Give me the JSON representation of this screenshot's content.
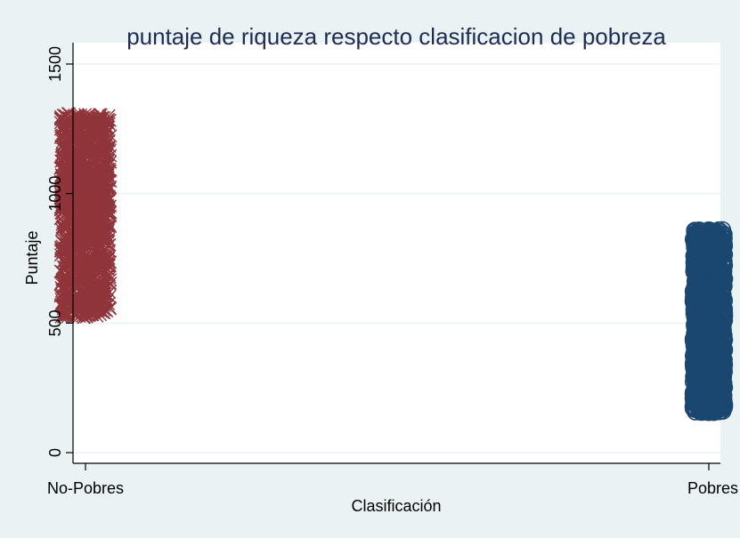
{
  "chart_data": {
    "type": "scatter",
    "title": "puntaje de riqueza respecto clasificacion de pobreza",
    "xlabel": "Clasificación",
    "ylabel": "Puntaje",
    "categories": [
      "No-Pobres",
      "Pobres"
    ],
    "ylim": [
      0,
      1550
    ],
    "yticks": [
      0,
      500,
      1000,
      1500
    ],
    "grid": true,
    "legend": "none",
    "series": [
      {
        "category": "No-Pobres",
        "marker": "x",
        "color": "#90353b",
        "y_range": [
          505,
          1325
        ],
        "jitter_width": 0.04,
        "n_points": 1500
      },
      {
        "category": "Pobres",
        "marker": "circle",
        "color": "#1a476f",
        "y_range": [
          140,
          875
        ],
        "jitter_width": 0.025,
        "n_points": 1500
      }
    ]
  },
  "colors": {
    "background": "#eaf2f3",
    "plot_area": "#ffffff",
    "gridline": "#eaf2f3",
    "axis": "#000000",
    "title": "#1e2c52"
  }
}
